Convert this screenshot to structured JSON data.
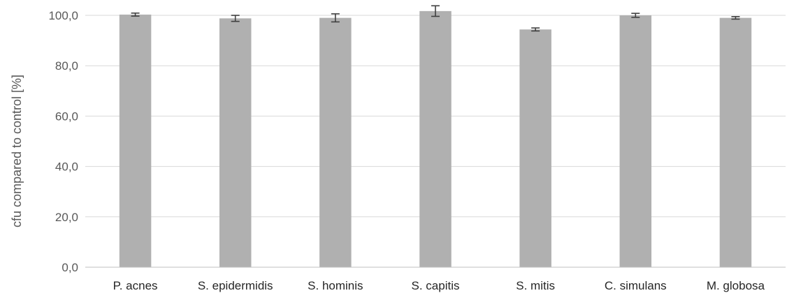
{
  "chart_data": {
    "type": "bar",
    "title": "",
    "xlabel": "",
    "ylabel": "cfu compared to control [%]",
    "ylim": [
      0,
      100
    ],
    "yticks": [
      0,
      20,
      40,
      60,
      80,
      100
    ],
    "ytick_labels": [
      "0,0",
      "20,0",
      "40,0",
      "60,0",
      "80,0",
      "100,0"
    ],
    "grid": true,
    "categories": [
      "P. acnes",
      "S. epidermidis",
      "S. hominis",
      "S. capitis",
      "S. mitis",
      "C. simulans",
      "M. globosa"
    ],
    "values": [
      100.3,
      98.8,
      99.0,
      101.7,
      94.4,
      100.0,
      99.0
    ],
    "errors": [
      0.6,
      1.2,
      1.6,
      2.1,
      0.6,
      0.8,
      0.5
    ],
    "bar_color": "#b0b0b0"
  }
}
